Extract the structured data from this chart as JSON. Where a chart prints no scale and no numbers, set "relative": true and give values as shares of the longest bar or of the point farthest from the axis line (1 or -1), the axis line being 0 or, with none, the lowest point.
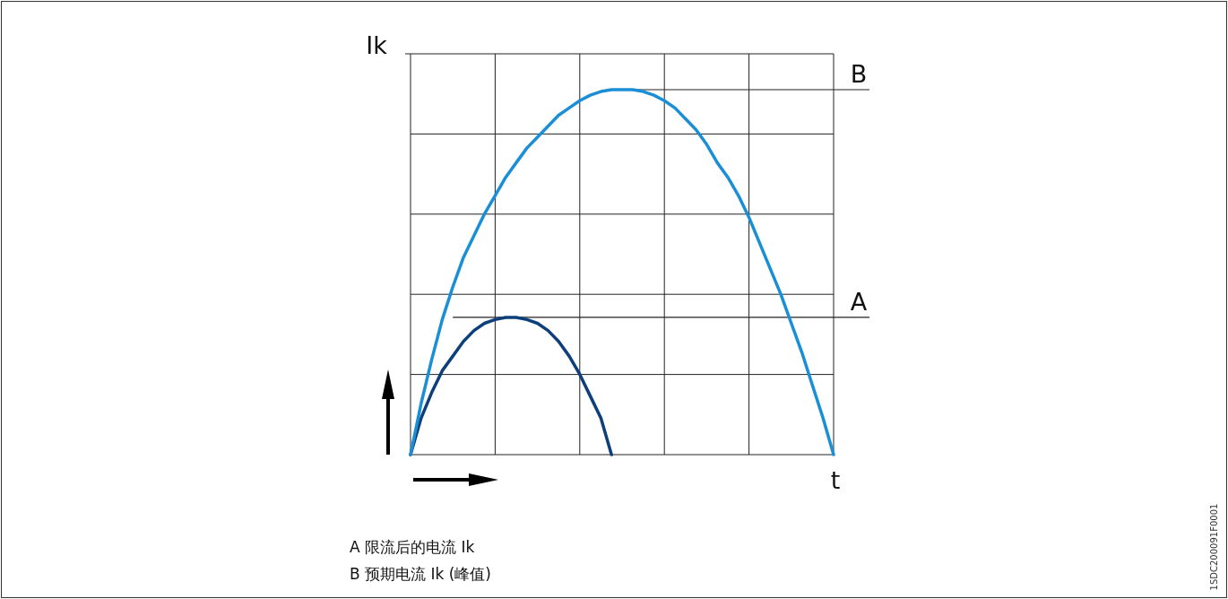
{
  "chart_data": {
    "type": "line",
    "relative": true,
    "grid": true,
    "xlabel": "t",
    "ylabel": "Ik",
    "categories": [
      null,
      null,
      null,
      null,
      null,
      null,
      null,
      null,
      null,
      null,
      null,
      null,
      null,
      null,
      null,
      null,
      null,
      null,
      null,
      null,
      null,
      null,
      null,
      null,
      null,
      null,
      null,
      null,
      null,
      null,
      null,
      null,
      null,
      null,
      null,
      null,
      null,
      null,
      null,
      null,
      null
    ],
    "series": [
      {
        "color": "#0d3f7a",
        "values": [
          0,
          0.1,
          0.17,
          0.23,
          0.27,
          0.31,
          0.34,
          0.36,
          0.37,
          0.376,
          0.376,
          0.37,
          0.36,
          0.34,
          0.31,
          0.27,
          0.22,
          0.16,
          0.1,
          0,
          null,
          null,
          null,
          null,
          null,
          null,
          null,
          null,
          null,
          null,
          null,
          null,
          null,
          null,
          null,
          null,
          null,
          null,
          null,
          null,
          null
        ]
      },
      {
        "color": "#1a8fd6",
        "values": [
          0,
          0.14,
          0.26,
          0.37,
          0.46,
          0.54,
          0.6,
          0.66,
          0.71,
          0.76,
          0.8,
          0.84,
          0.87,
          0.9,
          0.93,
          0.95,
          0.97,
          0.985,
          0.995,
          1,
          1,
          1,
          0.995,
          0.985,
          0.97,
          0.95,
          0.92,
          0.89,
          0.85,
          0.8,
          0.76,
          0.71,
          0.65,
          0.58,
          0.51,
          0.44,
          0.36,
          0.28,
          0.19,
          0.1,
          0
        ]
      }
    ],
    "ref_lines": [
      {
        "axis": "y",
        "value": 1,
        "label": "B"
      },
      {
        "axis": "y",
        "value": 0.376,
        "label": "A"
      }
    ],
    "annotations": [
      "A  限流后的电流 Ik",
      "B  预期电流 Ik (峰值)",
      "1SDC200091F0001"
    ]
  }
}
